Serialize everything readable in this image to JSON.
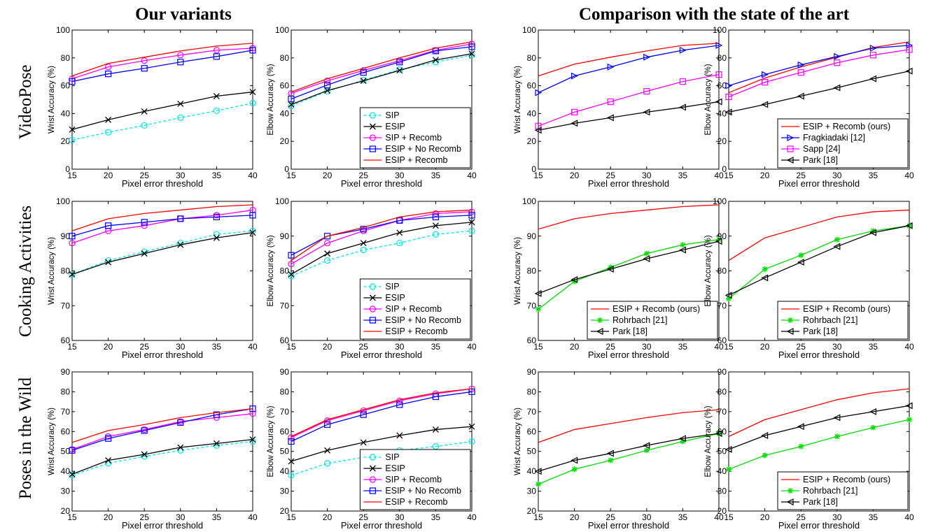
{
  "titles": {
    "left": "Our variants",
    "right": "Comparison with the state of the art"
  },
  "row_labels": [
    "VideoPose",
    "Cooking Activities",
    "Poses in the Wild"
  ],
  "chart_data": [
    {
      "type": "line",
      "row": 0,
      "col": 0,
      "xlabel": "Pixel error threshold",
      "ylabel": "Wrist Accuracy (%)",
      "x": [
        15,
        20,
        25,
        30,
        35,
        40
      ],
      "xlim": [
        15,
        40
      ],
      "ylim": [
        0,
        100
      ],
      "yticks": [
        0,
        20,
        40,
        60,
        80,
        100
      ],
      "legend": null,
      "series": [
        {
          "name": "SIP",
          "color": "#00e5e5",
          "dash": "4,3",
          "marker": "circle",
          "values": [
            21,
            26.5,
            31.5,
            37,
            42,
            47.5
          ]
        },
        {
          "name": "ESIP",
          "color": "#000000",
          "dash": "",
          "marker": "x",
          "values": [
            28.5,
            35.5,
            41.5,
            47,
            52.5,
            55.5
          ]
        },
        {
          "name": "SIP + Recomb",
          "color": "#ff00ff",
          "dash": "",
          "marker": "circle",
          "values": [
            65,
            73.5,
            78,
            82,
            85.5,
            87
          ]
        },
        {
          "name": "ESIP + No Recomb",
          "color": "#0000ff",
          "dash": "",
          "marker": "square",
          "values": [
            63,
            68.5,
            72.5,
            77,
            81,
            85.5
          ]
        },
        {
          "name": "ESIP + Recomb",
          "color": "#ff0000",
          "dash": "",
          "marker": "none",
          "values": [
            67,
            76,
            80.5,
            85,
            88.5,
            90.5
          ]
        }
      ]
    },
    {
      "type": "line",
      "row": 0,
      "col": 1,
      "xlabel": "Pixel error threshold",
      "ylabel": "Elbow Accuracy (%)",
      "x": [
        15,
        20,
        25,
        30,
        35,
        40
      ],
      "xlim": [
        15,
        40
      ],
      "ylim": [
        0,
        100
      ],
      "yticks": [
        0,
        20,
        40,
        60,
        80,
        100
      ],
      "legend": "lower-right",
      "series": [
        {
          "name": "SIP",
          "color": "#00e5e5",
          "dash": "4,3",
          "marker": "circle",
          "values": [
            45.5,
            56,
            64,
            71.5,
            77,
            82
          ]
        },
        {
          "name": "ESIP",
          "color": "#000000",
          "dash": "",
          "marker": "x",
          "values": [
            46.5,
            56.5,
            63.5,
            71,
            78.5,
            83
          ]
        },
        {
          "name": "SIP + Recomb",
          "color": "#ff00ff",
          "dash": "",
          "marker": "circle",
          "values": [
            54.5,
            63.5,
            71,
            78,
            85.5,
            90
          ]
        },
        {
          "name": "ESIP + No Recomb",
          "color": "#0000ff",
          "dash": "",
          "marker": "square",
          "values": [
            50.5,
            60.5,
            69.5,
            77,
            85,
            88
          ]
        },
        {
          "name": "ESIP + Recomb",
          "color": "#ff0000",
          "dash": "",
          "marker": "none",
          "values": [
            55.5,
            65,
            72.5,
            80,
            87,
            91.5
          ]
        }
      ]
    },
    {
      "type": "line",
      "row": 0,
      "col": 2,
      "xlabel": "Pixel error threshold",
      "ylabel": "Wrist Accuracy (%)",
      "x": [
        15,
        20,
        25,
        30,
        35,
        40
      ],
      "xlim": [
        15,
        40
      ],
      "ylim": [
        0,
        100
      ],
      "yticks": [
        0,
        20,
        40,
        60,
        80,
        100
      ],
      "legend": null,
      "series": [
        {
          "name": "ESIP + Recomb (ours)",
          "color": "#ff0000",
          "dash": "",
          "marker": "none",
          "values": [
            67,
            75.5,
            80.5,
            85,
            89,
            90.5
          ]
        },
        {
          "name": "Fragkiadaki [12]",
          "color": "#0000ff",
          "dash": "",
          "marker": "tri-right",
          "values": [
            55,
            67,
            73.5,
            80.5,
            85.5,
            89
          ]
        },
        {
          "name": "Sapp [24]",
          "color": "#ff00ff",
          "dash": "",
          "marker": "square",
          "values": [
            31,
            41,
            48.5,
            56,
            63,
            68
          ]
        },
        {
          "name": "Park [18]",
          "color": "#000000",
          "dash": "",
          "marker": "tri-left",
          "values": [
            28,
            33,
            37,
            41,
            44.5,
            48.5
          ]
        }
      ]
    },
    {
      "type": "line",
      "row": 0,
      "col": 3,
      "xlabel": "Pixel error threshold",
      "ylabel": "Elbow Accuracy (%)",
      "x": [
        15,
        20,
        25,
        30,
        35,
        40
      ],
      "xlim": [
        15,
        40
      ],
      "ylim": [
        0,
        100
      ],
      "yticks": [
        0,
        20,
        40,
        60,
        80,
        100
      ],
      "legend": "lower-right",
      "series": [
        {
          "name": "ESIP + Recomb (ours)",
          "color": "#ff0000",
          "dash": "",
          "marker": "none",
          "values": [
            55,
            65.5,
            73.5,
            80.5,
            87.5,
            91.5
          ]
        },
        {
          "name": "Fragkiadaki [12]",
          "color": "#0000ff",
          "dash": "",
          "marker": "tri-right",
          "values": [
            60,
            68,
            75,
            81,
            87,
            89
          ]
        },
        {
          "name": "Sapp [24]",
          "color": "#ff00ff",
          "dash": "",
          "marker": "square",
          "values": [
            52,
            62.5,
            69.5,
            76.5,
            82,
            86
          ]
        },
        {
          "name": "Park [18]",
          "color": "#000000",
          "dash": "",
          "marker": "tri-left",
          "values": [
            41,
            46.5,
            52.5,
            58.5,
            65,
            70.5
          ]
        }
      ]
    },
    {
      "type": "line",
      "row": 1,
      "col": 0,
      "xlabel": "Pixel error threshold",
      "ylabel": "Wrist Accuracy (%)",
      "x": [
        15,
        20,
        25,
        30,
        35,
        40
      ],
      "xlim": [
        15,
        40
      ],
      "ylim": [
        60,
        100
      ],
      "yticks": [
        60,
        70,
        80,
        90,
        100
      ],
      "legend": null,
      "series": [
        {
          "name": "SIP",
          "color": "#00e5e5",
          "dash": "4,3",
          "marker": "circle",
          "values": [
            79,
            83,
            85.5,
            88,
            90.5,
            91.5
          ]
        },
        {
          "name": "ESIP",
          "color": "#000000",
          "dash": "",
          "marker": "x",
          "values": [
            79,
            82.5,
            85,
            87.5,
            89.5,
            91
          ]
        },
        {
          "name": "SIP + Recomb",
          "color": "#ff00ff",
          "dash": "",
          "marker": "circle",
          "values": [
            88,
            91.5,
            93,
            95,
            96,
            97.5
          ]
        },
        {
          "name": "ESIP + No Recomb",
          "color": "#0000ff",
          "dash": "",
          "marker": "square",
          "values": [
            90,
            93,
            94,
            95,
            95.5,
            96
          ]
        },
        {
          "name": "ESIP + Recomb",
          "color": "#ff0000",
          "dash": "",
          "marker": "none",
          "values": [
            91.5,
            95,
            96.5,
            97.5,
            98.5,
            99
          ]
        }
      ]
    },
    {
      "type": "line",
      "row": 1,
      "col": 1,
      "xlabel": "Pixel error threshold",
      "ylabel": "Elbow Accuracy (%)",
      "x": [
        15,
        20,
        25,
        30,
        35,
        40
      ],
      "xlim": [
        15,
        40
      ],
      "ylim": [
        60,
        100
      ],
      "yticks": [
        60,
        70,
        80,
        90,
        100
      ],
      "legend": "lower-right",
      "series": [
        {
          "name": "SIP",
          "color": "#00e5e5",
          "dash": "4,3",
          "marker": "circle",
          "values": [
            78.5,
            83,
            86,
            88,
            90.5,
            91.5
          ]
        },
        {
          "name": "ESIP",
          "color": "#000000",
          "dash": "",
          "marker": "x",
          "values": [
            79,
            85,
            88,
            91,
            93,
            94
          ]
        },
        {
          "name": "SIP + Recomb",
          "color": "#ff00ff",
          "dash": "",
          "marker": "circle",
          "values": [
            82,
            88,
            91.5,
            94.5,
            96.5,
            97
          ]
        },
        {
          "name": "ESIP + No Recomb",
          "color": "#0000ff",
          "dash": "",
          "marker": "square",
          "values": [
            84.5,
            90,
            92,
            94.5,
            95.5,
            96
          ]
        },
        {
          "name": "ESIP + Recomb",
          "color": "#ff0000",
          "dash": "",
          "marker": "none",
          "values": [
            83,
            90,
            92.5,
            95.5,
            97,
            97.5
          ]
        }
      ]
    },
    {
      "type": "line",
      "row": 1,
      "col": 2,
      "xlabel": "Pixel error threshold",
      "ylabel": "Wrist Accuracy (%)",
      "x": [
        15,
        20,
        25,
        30,
        35,
        40
      ],
      "xlim": [
        15,
        40
      ],
      "ylim": [
        60,
        100
      ],
      "yticks": [
        60,
        70,
        80,
        90,
        100
      ],
      "legend": "lower-right",
      "series": [
        {
          "name": "ESIP + Recomb (ours)",
          "color": "#ff0000",
          "dash": "",
          "marker": "none",
          "values": [
            92,
            95,
            96.5,
            97.5,
            98.5,
            99
          ]
        },
        {
          "name": "Rohrbach [21]",
          "color": "#00dd00",
          "dash": "",
          "marker": "star",
          "values": [
            69,
            77,
            81,
            85,
            87.5,
            89
          ]
        },
        {
          "name": "Park [18]",
          "color": "#000000",
          "dash": "",
          "marker": "tri-left",
          "values": [
            73.5,
            77.5,
            80.5,
            83.5,
            86,
            88.5
          ]
        }
      ]
    },
    {
      "type": "line",
      "row": 1,
      "col": 3,
      "xlabel": "Pixel error threshold",
      "ylabel": "Elbow Accuracy (%)",
      "x": [
        15,
        20,
        25,
        30,
        35,
        40
      ],
      "xlim": [
        15,
        40
      ],
      "ylim": [
        60,
        100
      ],
      "yticks": [
        60,
        70,
        80,
        90,
        100
      ],
      "legend": "lower-right",
      "series": [
        {
          "name": "ESIP + Recomb (ours)",
          "color": "#ff0000",
          "dash": "",
          "marker": "none",
          "values": [
            83,
            89.5,
            92.5,
            95.5,
            97,
            97.5
          ]
        },
        {
          "name": "Rohrbach [21]",
          "color": "#00dd00",
          "dash": "",
          "marker": "star",
          "values": [
            72,
            80.5,
            84.5,
            89,
            91.5,
            93
          ]
        },
        {
          "name": "Park [18]",
          "color": "#000000",
          "dash": "",
          "marker": "tri-left",
          "values": [
            73,
            78,
            82.5,
            87,
            91,
            93
          ]
        }
      ]
    },
    {
      "type": "line",
      "row": 2,
      "col": 0,
      "xlabel": "Pixel error threshold",
      "ylabel": "Wrist Accuracy (%)",
      "x": [
        15,
        20,
        25,
        30,
        35,
        40
      ],
      "xlim": [
        15,
        40
      ],
      "ylim": [
        20,
        90
      ],
      "yticks": [
        20,
        30,
        40,
        50,
        60,
        70,
        80,
        90
      ],
      "legend": null,
      "series": [
        {
          "name": "SIP",
          "color": "#00e5e5",
          "dash": "4,3",
          "marker": "circle",
          "values": [
            38,
            44,
            47.5,
            50.5,
            53,
            55
          ]
        },
        {
          "name": "ESIP",
          "color": "#000000",
          "dash": "",
          "marker": "x",
          "values": [
            38.5,
            45.5,
            48.5,
            52,
            54,
            56
          ]
        },
        {
          "name": "SIP + Recomb",
          "color": "#ff00ff",
          "dash": "",
          "marker": "circle",
          "values": [
            51,
            57.5,
            61,
            65,
            67,
            69
          ]
        },
        {
          "name": "ESIP + No Recomb",
          "color": "#0000ff",
          "dash": "",
          "marker": "square",
          "values": [
            50.5,
            56.5,
            60.5,
            64.5,
            68.5,
            71.5
          ]
        },
        {
          "name": "ESIP + Recomb",
          "color": "#ff0000",
          "dash": "",
          "marker": "none",
          "values": [
            54.5,
            60.5,
            63.5,
            67,
            69.5,
            71.5
          ]
        }
      ]
    },
    {
      "type": "line",
      "row": 2,
      "col": 1,
      "xlabel": "Pixel error threshold",
      "ylabel": "Elbow Accuracy (%)",
      "x": [
        15,
        20,
        25,
        30,
        35,
        40
      ],
      "xlim": [
        15,
        40
      ],
      "ylim": [
        20,
        90
      ],
      "yticks": [
        20,
        30,
        40,
        50,
        60,
        70,
        80,
        90
      ],
      "legend": "lower-right",
      "series": [
        {
          "name": "SIP",
          "color": "#00e5e5",
          "dash": "4,3",
          "marker": "circle",
          "values": [
            38,
            44,
            47,
            50.5,
            52.5,
            55
          ]
        },
        {
          "name": "ESIP",
          "color": "#000000",
          "dash": "",
          "marker": "x",
          "values": [
            45,
            50.5,
            54.5,
            58,
            61,
            62.5
          ]
        },
        {
          "name": "SIP + Recomb",
          "color": "#ff00ff",
          "dash": "",
          "marker": "circle",
          "values": [
            57,
            65.5,
            70.5,
            75.5,
            79,
            81.5
          ]
        },
        {
          "name": "ESIP + No Recomb",
          "color": "#0000ff",
          "dash": "",
          "marker": "square",
          "values": [
            55,
            63.5,
            68.5,
            73.5,
            77.5,
            80
          ]
        },
        {
          "name": "ESIP + Recomb",
          "color": "#ff0000",
          "dash": "",
          "marker": "none",
          "values": [
            57.5,
            66,
            71,
            76,
            79.5,
            81.5
          ]
        }
      ]
    },
    {
      "type": "line",
      "row": 2,
      "col": 2,
      "xlabel": "Pixel error threshold",
      "ylabel": "Wrist Accuracy (%)",
      "x": [
        15,
        20,
        25,
        30,
        35,
        40
      ],
      "xlim": [
        15,
        40
      ],
      "ylim": [
        20,
        90
      ],
      "yticks": [
        20,
        30,
        40,
        50,
        60,
        70,
        80,
        90
      ],
      "legend": null,
      "series": [
        {
          "name": "ESIP + Recomb (ours)",
          "color": "#ff0000",
          "dash": "",
          "marker": "none",
          "values": [
            54.5,
            61,
            64,
            67,
            69.5,
            71
          ]
        },
        {
          "name": "Rohrbach [21]",
          "color": "#00dd00",
          "dash": "",
          "marker": "star",
          "values": [
            33.5,
            41,
            45.5,
            50.5,
            55,
            59
          ]
        },
        {
          "name": "Park [18]",
          "color": "#000000",
          "dash": "",
          "marker": "tri-left",
          "values": [
            40,
            45.5,
            49,
            53,
            56.5,
            59
          ]
        }
      ]
    },
    {
      "type": "line",
      "row": 2,
      "col": 3,
      "xlabel": "Pixel error threshold",
      "ylabel": "Elbow Accuracy (%)",
      "x": [
        15,
        20,
        25,
        30,
        35,
        40
      ],
      "xlim": [
        15,
        40
      ],
      "ylim": [
        20,
        90
      ],
      "yticks": [
        20,
        30,
        40,
        50,
        60,
        70,
        80,
        90
      ],
      "legend": "lower-right",
      "series": [
        {
          "name": "ESIP + Recomb (ours)",
          "color": "#ff0000",
          "dash": "",
          "marker": "none",
          "values": [
            57.5,
            66,
            71,
            76,
            79.5,
            81.5
          ]
        },
        {
          "name": "Rohrbach [21]",
          "color": "#00dd00",
          "dash": "",
          "marker": "star",
          "values": [
            41,
            48,
            52.5,
            57.5,
            62,
            66
          ]
        },
        {
          "name": "Park [18]",
          "color": "#000000",
          "dash": "",
          "marker": "tri-left",
          "values": [
            51,
            58,
            62.5,
            67,
            70,
            73
          ]
        }
      ]
    }
  ]
}
